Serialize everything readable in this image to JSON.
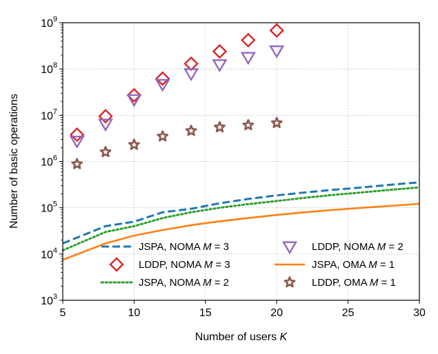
{
  "chart_data": {
    "type": "line",
    "title": "",
    "xlabel": "Number of users",
    "xlabel_var": "K",
    "ylabel": "Number of basic operations",
    "xlim": [
      5,
      30
    ],
    "ylim": [
      1000,
      1000000000
    ],
    "yscale": "log",
    "grid": true,
    "x_ticks": [
      "5",
      "10",
      "15",
      "20",
      "25",
      "30"
    ],
    "y_ticks": [
      {
        "base": "10",
        "exp": "3"
      },
      {
        "base": "10",
        "exp": "4"
      },
      {
        "base": "10",
        "exp": "5"
      },
      {
        "base": "10",
        "exp": "6"
      },
      {
        "base": "10",
        "exp": "7"
      },
      {
        "base": "10",
        "exp": "8"
      },
      {
        "base": "10",
        "exp": "9"
      }
    ],
    "legend_position": "lower-center",
    "series": [
      {
        "id": "jspa_noma3",
        "name_main": "JSPA, NOMA ",
        "name_var": "M",
        "name_tail": " = 3",
        "kind": "line",
        "style": "dashed",
        "color": "#1f77b4",
        "x": [
          5,
          8,
          10,
          12,
          14,
          16,
          18,
          20,
          22,
          24,
          26,
          28,
          30
        ],
        "y": [
          17000,
          40000,
          50000,
          80000,
          95000,
          125000,
          155000,
          185000,
          215000,
          245000,
          275000,
          315000,
          355000
        ]
      },
      {
        "id": "lddp_noma3",
        "name_main": "LDDP, NOMA ",
        "name_var": "M",
        "name_tail": " = 3",
        "kind": "marker",
        "marker": "diamond",
        "color": "#d62728",
        "x": [
          6,
          8,
          10,
          12,
          14,
          16,
          18,
          20
        ],
        "y": [
          3800000,
          9500000,
          27000000,
          62000000,
          130000000,
          240000000,
          420000000,
          680000000
        ]
      },
      {
        "id": "jspa_noma2",
        "name_main": "JSPA, NOMA ",
        "name_var": "M",
        "name_tail": " = 2",
        "kind": "line",
        "style": "dotted",
        "color": "#2ca02c",
        "x": [
          5,
          8,
          10,
          12,
          14,
          16,
          18,
          20,
          22,
          24,
          26,
          28,
          30
        ],
        "y": [
          12000,
          30000,
          40000,
          60000,
          80000,
          100000,
          120000,
          140000,
          165000,
          190000,
          215000,
          245000,
          275000
        ]
      },
      {
        "id": "lddp_noma2",
        "name_main": "LDDP, NOMA ",
        "name_var": "M",
        "name_tail": " = 2",
        "kind": "marker",
        "marker": "triangle-down",
        "color": "#9467bd",
        "x": [
          6,
          8,
          10,
          12,
          14,
          16,
          18,
          20
        ],
        "y": [
          2800000,
          6500000,
          22000000,
          47000000,
          80000000,
          125000000,
          180000000,
          250000000
        ]
      },
      {
        "id": "jspa_oma1",
        "name_main": "JSPA, OMA ",
        "name_var": "M",
        "name_tail": " = 1",
        "kind": "line",
        "style": "solid",
        "color": "#ff7f0e",
        "x": [
          5,
          8,
          10,
          12,
          14,
          16,
          18,
          20,
          22,
          24,
          26,
          28,
          30
        ],
        "y": [
          7500,
          17000,
          25000,
          33000,
          42000,
          51000,
          60000,
          70000,
          80000,
          90000,
          100000,
          110000,
          122000
        ]
      },
      {
        "id": "lddp_oma1",
        "name_main": "LDDP, OMA ",
        "name_var": "M",
        "name_tail": " = 1",
        "kind": "marker",
        "marker": "star",
        "color": "#8c564b",
        "x": [
          6,
          8,
          10,
          12,
          14,
          16,
          18,
          20
        ],
        "y": [
          880000,
          1600000,
          2300000,
          3500000,
          4600000,
          5500000,
          6100000,
          6800000
        ]
      }
    ],
    "legend_order": [
      "jspa_noma3",
      "lddp_noma2",
      "lddp_noma3",
      "jspa_oma1",
      "jspa_noma2",
      "lddp_oma1"
    ]
  }
}
